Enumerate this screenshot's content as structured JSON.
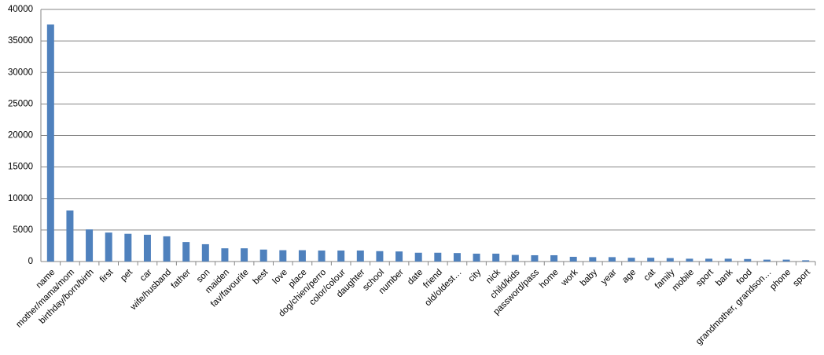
{
  "chart_data": {
    "type": "bar",
    "categories": [
      "name",
      "mother/mama/mom",
      "birthday/born/birth",
      "first",
      "pet",
      "car",
      "wife/husband",
      "father",
      "son",
      "maiden",
      "fav/favourite",
      "best",
      "love",
      "place",
      "dog/chien/perro",
      "color/colour",
      "daughter",
      "school",
      "number",
      "date",
      "friend",
      "old/oldest…",
      "city",
      "nick",
      "child/kids",
      "password/pass",
      "home",
      "work",
      "baby",
      "year",
      "age",
      "cat",
      "family",
      "mobile",
      "sport",
      "bank",
      "food",
      "grandmother, grandson…",
      "phone",
      "sport"
    ],
    "values": [
      37600,
      8100,
      5100,
      4600,
      4400,
      4250,
      4000,
      3100,
      2750,
      2100,
      2100,
      1900,
      1800,
      1800,
      1750,
      1750,
      1750,
      1650,
      1600,
      1400,
      1400,
      1350,
      1250,
      1250,
      1050,
      1000,
      1000,
      750,
      700,
      700,
      600,
      600,
      550,
      450,
      450,
      450,
      400,
      300,
      300,
      200
    ],
    "color": "#4f81bd",
    "ylim": [
      0,
      40000
    ],
    "yticks": [
      0,
      5000,
      10000,
      15000,
      20000,
      25000,
      30000,
      35000,
      40000
    ],
    "grid": true
  }
}
